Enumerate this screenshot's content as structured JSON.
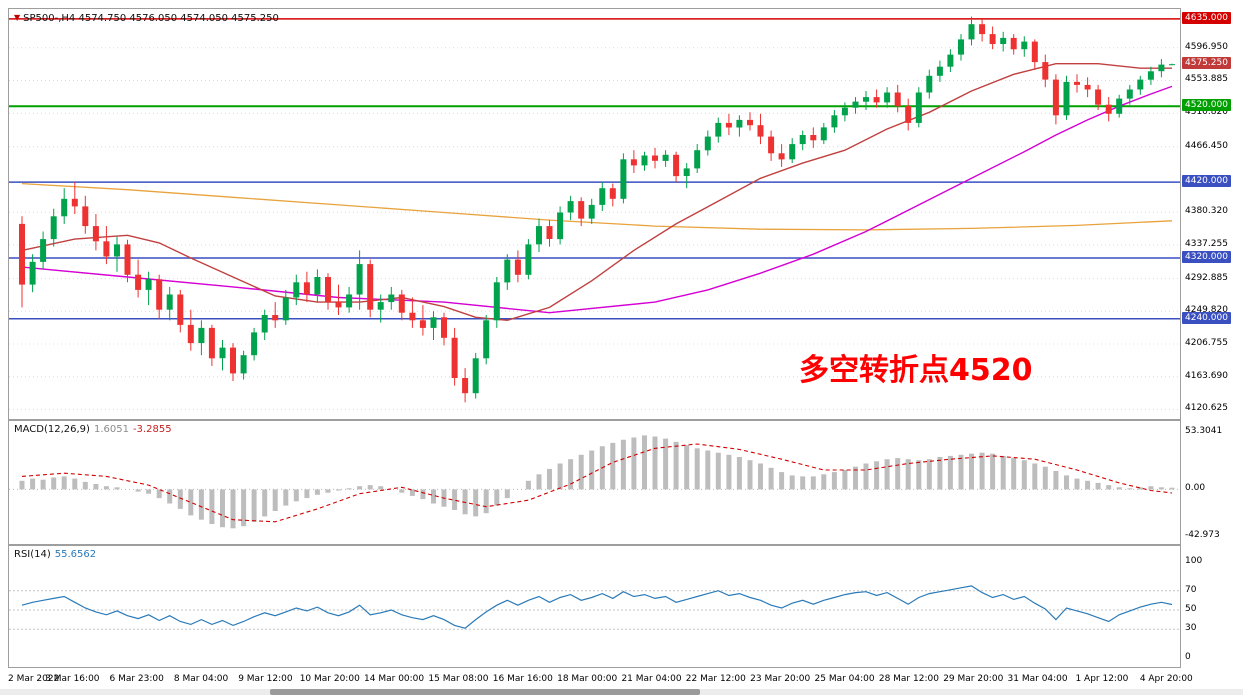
{
  "colors": {
    "candle_up": "#00A24C",
    "candle_down": "#EE3131",
    "ma_fast_red": "#C04040",
    "ma_mid_magenta": "#D400D4",
    "ma_slow_orange": "#E8A33D",
    "level_red": "#D40000",
    "level_green": "#00A000",
    "level_blue": "#3A4FC0",
    "macd_histogram": "#BDBDBD",
    "macd_signal": "#D00000",
    "rsi_line": "#2A7AB8",
    "grid": "#DCDCDC",
    "annotation": "#FF0000"
  },
  "time_axis": {
    "labels": [
      "2 Mar 2022",
      "3 Mar 16:00",
      "6 Mar 23:00",
      "8 Mar 04:00",
      "9 Mar 12:00",
      "10 Mar 20:00",
      "14 Mar 00:00",
      "15 Mar 08:00",
      "16 Mar 16:00",
      "18 Mar 00:00",
      "21 Mar 04:00",
      "22 Mar 12:00",
      "23 Mar 20:00",
      "25 Mar 04:00",
      "28 Mar 12:00",
      "29 Mar 20:00",
      "31 Mar 04:00",
      "1 Apr 12:00",
      "4 Apr 20:00"
    ]
  },
  "chart_data": [
    {
      "type": "candlestick",
      "symbol": "SP500-",
      "timeframe": "H4",
      "title_display": "SP500-,H4  4574.750 4576.050 4574.050 4575.250",
      "yrange": [
        4108,
        4648
      ],
      "yticks": [
        {
          "value": 4596.95,
          "label": "4596.950"
        },
        {
          "value": 4553.885,
          "label": "4553.885"
        },
        {
          "value": 4510.82,
          "label": "4510.820"
        },
        {
          "value": 4466.45,
          "label": "4466.450"
        },
        {
          "value": 4380.32,
          "label": "4380.320"
        },
        {
          "value": 4337.255,
          "label": "4337.255"
        },
        {
          "value": 4292.885,
          "label": "4292.885"
        },
        {
          "value": 4249.82,
          "label": "4249.820"
        },
        {
          "value": 4206.755,
          "label": "4206.755"
        },
        {
          "value": 4163.69,
          "label": "4163.690"
        },
        {
          "value": 4120.625,
          "label": "4120.625"
        }
      ],
      "hlines": [
        {
          "value": 4635.0,
          "label": "4635.000",
          "color_key": "level_red",
          "width": 1.5
        },
        {
          "value": 4520.0,
          "label": "4520.000",
          "color_key": "level_green",
          "width": 2
        },
        {
          "value": 4420.0,
          "label": "4420.000",
          "color_key": "level_blue",
          "width": 1.5
        },
        {
          "value": 4320.0,
          "label": "4320.000",
          "color_key": "level_blue",
          "width": 1.5
        },
        {
          "value": 4240.0,
          "label": "4240.000",
          "color_key": "level_blue",
          "width": 1.5
        }
      ],
      "price_badges": [
        {
          "value": 4635.0,
          "label": "4635.000",
          "bg": "#D40000"
        },
        {
          "value": 4575.25,
          "label": "4575.250",
          "bg": "#C03A3A"
        },
        {
          "value": 4520.0,
          "label": "4520.000",
          "bg": "#00A000"
        },
        {
          "value": 4420.0,
          "label": "4420.000",
          "bg": "#3A4FC0"
        },
        {
          "value": 4320.0,
          "label": "4320.000",
          "bg": "#3A4FC0"
        },
        {
          "value": 4240.0,
          "label": "4240.000",
          "bg": "#3A4FC0"
        }
      ],
      "candles": [
        [
          4365,
          4375,
          4255,
          4285
        ],
        [
          4285,
          4325,
          4275,
          4315
        ],
        [
          4315,
          4355,
          4305,
          4345
        ],
        [
          4345,
          4385,
          4335,
          4375
        ],
        [
          4375,
          4412,
          4365,
          4398
        ],
        [
          4398,
          4420,
          4378,
          4388
        ],
        [
          4388,
          4402,
          4352,
          4362
        ],
        [
          4362,
          4378,
          4330,
          4342
        ],
        [
          4342,
          4362,
          4312,
          4322
        ],
        [
          4322,
          4348,
          4302,
          4338
        ],
        [
          4338,
          4344,
          4288,
          4298
        ],
        [
          4298,
          4318,
          4268,
          4278
        ],
        [
          4278,
          4302,
          4258,
          4292
        ],
        [
          4292,
          4298,
          4240,
          4252
        ],
        [
          4252,
          4282,
          4238,
          4272
        ],
        [
          4272,
          4278,
          4222,
          4232
        ],
        [
          4232,
          4252,
          4198,
          4208
        ],
        [
          4208,
          4238,
          4192,
          4228
        ],
        [
          4228,
          4232,
          4178,
          4188
        ],
        [
          4188,
          4212,
          4172,
          4202
        ],
        [
          4202,
          4208,
          4158,
          4168
        ],
        [
          4168,
          4198,
          4160,
          4192
        ],
        [
          4192,
          4228,
          4185,
          4222
        ],
        [
          4222,
          4252,
          4212,
          4245
        ],
        [
          4245,
          4262,
          4228,
          4238
        ],
        [
          4238,
          4278,
          4232,
          4268
        ],
        [
          4268,
          4298,
          4258,
          4288
        ],
        [
          4288,
          4302,
          4262,
          4272
        ],
        [
          4272,
          4305,
          4262,
          4295
        ],
        [
          4295,
          4300,
          4252,
          4262
        ],
        [
          4262,
          4285,
          4245,
          4255
        ],
        [
          4255,
          4282,
          4248,
          4272
        ],
        [
          4272,
          4330,
          4252,
          4312
        ],
        [
          4312,
          4318,
          4242,
          4252
        ],
        [
          4252,
          4272,
          4235,
          4262
        ],
        [
          4262,
          4282,
          4252,
          4272
        ],
        [
          4272,
          4278,
          4238,
          4248
        ],
        [
          4248,
          4268,
          4228,
          4238
        ],
        [
          4238,
          4258,
          4218,
          4228
        ],
        [
          4228,
          4250,
          4212,
          4242
        ],
        [
          4242,
          4248,
          4205,
          4215
        ],
        [
          4215,
          4228,
          4152,
          4162
        ],
        [
          4162,
          4175,
          4130,
          4142
        ],
        [
          4142,
          4195,
          4135,
          4188
        ],
        [
          4188,
          4245,
          4180,
          4238
        ],
        [
          4238,
          4295,
          4228,
          4288
        ],
        [
          4288,
          4325,
          4278,
          4318
        ],
        [
          4318,
          4330,
          4288,
          4298
        ],
        [
          4298,
          4345,
          4292,
          4338
        ],
        [
          4338,
          4372,
          4328,
          4362
        ],
        [
          4362,
          4370,
          4335,
          4345
        ],
        [
          4345,
          4388,
          4338,
          4380
        ],
        [
          4380,
          4402,
          4370,
          4395
        ],
        [
          4395,
          4400,
          4362,
          4372
        ],
        [
          4372,
          4398,
          4365,
          4390
        ],
        [
          4390,
          4420,
          4382,
          4412
        ],
        [
          4412,
          4418,
          4388,
          4398
        ],
        [
          4398,
          4458,
          4392,
          4450
        ],
        [
          4450,
          4462,
          4432,
          4442
        ],
        [
          4442,
          4460,
          4435,
          4455
        ],
        [
          4455,
          4465,
          4438,
          4448
        ],
        [
          4448,
          4462,
          4440,
          4456
        ],
        [
          4456,
          4460,
          4420,
          4428
        ],
        [
          4428,
          4445,
          4412,
          4438
        ],
        [
          4438,
          4470,
          4432,
          4462
        ],
        [
          4462,
          4488,
          4455,
          4480
        ],
        [
          4480,
          4505,
          4472,
          4498
        ],
        [
          4498,
          4510,
          4482,
          4492
        ],
        [
          4492,
          4508,
          4480,
          4502
        ],
        [
          4502,
          4512,
          4488,
          4495
        ],
        [
          4495,
          4510,
          4470,
          4480
        ],
        [
          4480,
          4488,
          4448,
          4458
        ],
        [
          4458,
          4470,
          4440,
          4450
        ],
        [
          4450,
          4478,
          4445,
          4470
        ],
        [
          4470,
          4488,
          4462,
          4482
        ],
        [
          4482,
          4492,
          4465,
          4475
        ],
        [
          4475,
          4498,
          4470,
          4492
        ],
        [
          4492,
          4515,
          4485,
          4508
        ],
        [
          4508,
          4525,
          4500,
          4518
        ],
        [
          4518,
          4532,
          4510,
          4526
        ],
        [
          4526,
          4540,
          4515,
          4532
        ],
        [
          4532,
          4542,
          4518,
          4525
        ],
        [
          4525,
          4545,
          4518,
          4538
        ],
        [
          4538,
          4548,
          4512,
          4520
        ],
        [
          4520,
          4530,
          4488,
          4498
        ],
        [
          4498,
          4545,
          4492,
          4538
        ],
        [
          4538,
          4568,
          4530,
          4560
        ],
        [
          4560,
          4580,
          4552,
          4572
        ],
        [
          4572,
          4595,
          4565,
          4588
        ],
        [
          4588,
          4615,
          4580,
          4608
        ],
        [
          4608,
          4638,
          4600,
          4628
        ],
        [
          4628,
          4634,
          4605,
          4615
        ],
        [
          4615,
          4625,
          4595,
          4602
        ],
        [
          4602,
          4618,
          4592,
          4610
        ],
        [
          4610,
          4615,
          4588,
          4595
        ],
        [
          4595,
          4612,
          4585,
          4605
        ],
        [
          4605,
          4608,
          4568,
          4578
        ],
        [
          4578,
          4588,
          4545,
          4555
        ],
        [
          4555,
          4562,
          4496,
          4508
        ],
        [
          4508,
          4560,
          4502,
          4552
        ],
        [
          4552,
          4562,
          4538,
          4548
        ],
        [
          4548,
          4558,
          4532,
          4542
        ],
        [
          4542,
          4548,
          4515,
          4522
        ],
        [
          4522,
          4532,
          4500,
          4510
        ],
        [
          4510,
          4535,
          4505,
          4530
        ],
        [
          4530,
          4548,
          4522,
          4542
        ],
        [
          4542,
          4560,
          4535,
          4555
        ],
        [
          4555,
          4572,
          4548,
          4566
        ],
        [
          4566,
          4582,
          4558,
          4574.75
        ],
        [
          4574.75,
          4576.05,
          4574.05,
          4575.25
        ]
      ],
      "overlays": {
        "ma_fast_red": {
          "i": [
            0,
            5,
            10,
            13,
            16,
            20,
            24,
            28,
            32,
            36,
            40,
            43,
            46,
            50,
            54,
            58,
            62,
            66,
            70,
            74,
            78,
            82,
            86,
            90,
            94,
            98,
            102,
            106,
            109
          ],
          "v": [
            4330,
            4345,
            4350,
            4340,
            4320,
            4295,
            4270,
            4262,
            4262,
            4268,
            4256,
            4242,
            4238,
            4255,
            4290,
            4330,
            4365,
            4395,
            4425,
            4445,
            4462,
            4490,
            4512,
            4540,
            4562,
            4576,
            4576,
            4570,
            4570
          ]
        },
        "ma_mid_magenta": {
          "i": [
            0,
            10,
            20,
            30,
            40,
            50,
            60,
            65,
            70,
            75,
            80,
            85,
            90,
            95,
            98,
            101,
            104,
            107,
            109
          ],
          "v": [
            4308,
            4295,
            4282,
            4268,
            4262,
            4248,
            4262,
            4278,
            4300,
            4325,
            4355,
            4390,
            4425,
            4460,
            4482,
            4502,
            4520,
            4536,
            4546
          ]
        },
        "ma_slow_orange": {
          "i": [
            0,
            10,
            20,
            30,
            40,
            50,
            60,
            70,
            80,
            90,
            100,
            109
          ],
          "v": [
            4418,
            4410,
            4400,
            4390,
            4380,
            4370,
            4362,
            4358,
            4357,
            4359,
            4363,
            4369
          ]
        }
      },
      "annotations": [
        {
          "text": "多空转折点4520",
          "color": "#FF0000"
        }
      ]
    },
    {
      "type": "bar",
      "name": "MACD(12,26,9)",
      "value_main": "1.6051",
      "value_signal": "-3.2855",
      "yrange": [
        -50.5,
        63.3
      ],
      "yticks": [
        {
          "value": 53.3041,
          "label": "53.3041"
        },
        {
          "value": 0,
          "label": "0.00"
        },
        {
          "value": -42.973,
          "label": "-42.973"
        }
      ],
      "histogram": [
        8,
        10,
        9,
        11,
        12,
        10,
        7,
        5,
        3,
        2,
        0,
        -2,
        -4,
        -8,
        -13,
        -18,
        -24,
        -28,
        -32,
        -35,
        -36,
        -34,
        -30,
        -25,
        -20,
        -15,
        -11,
        -8,
        -5,
        -3,
        -1,
        1,
        3,
        4,
        3,
        0,
        -3,
        -6,
        -9,
        -13,
        -16,
        -19,
        -23,
        -25,
        -22,
        -15,
        -8,
        0,
        8,
        14,
        19,
        24,
        28,
        32,
        36,
        40,
        43,
        46,
        48,
        50,
        49,
        47,
        44,
        41,
        38,
        36,
        34,
        32,
        30,
        27,
        24,
        20,
        16,
        13,
        12,
        12,
        14,
        16,
        18,
        21,
        24,
        26,
        28,
        29,
        28,
        27,
        28,
        30,
        31,
        32,
        33,
        34,
        33,
        31,
        29,
        27,
        24,
        21,
        17,
        13,
        10,
        8,
        6,
        4,
        2,
        1,
        2,
        3,
        2,
        1.6
      ],
      "signal": {
        "i": [
          0,
          4,
          8,
          12,
          16,
          20,
          24,
          28,
          32,
          36,
          40,
          44,
          48,
          52,
          56,
          60,
          64,
          68,
          72,
          76,
          80,
          84,
          88,
          92,
          96,
          100,
          104,
          107,
          109
        ],
        "v": [
          12,
          15,
          12,
          4,
          -12,
          -28,
          -30,
          -18,
          -4,
          2,
          -8,
          -16,
          -10,
          5,
          25,
          38,
          42,
          37,
          28,
          18,
          18,
          24,
          28,
          31,
          28,
          18,
          6,
          -1,
          -3.3
        ]
      }
    },
    {
      "type": "line",
      "name": "RSI(14)",
      "value": "55.6562",
      "yrange": [
        -9.3,
        116.5
      ],
      "yticks": [
        {
          "value": 100,
          "label": "100"
        },
        {
          "value": 70,
          "label": "70"
        },
        {
          "value": 50,
          "label": "50"
        },
        {
          "value": 30,
          "label": "30"
        },
        {
          "value": 0,
          "label": "0"
        }
      ],
      "levels": [
        70,
        50,
        30
      ],
      "values": [
        55,
        58,
        60,
        62,
        64,
        58,
        52,
        48,
        45,
        49,
        44,
        41,
        45,
        39,
        44,
        38,
        35,
        40,
        35,
        39,
        34,
        38,
        43,
        47,
        44,
        48,
        52,
        49,
        53,
        47,
        44,
        48,
        55,
        45,
        47,
        50,
        45,
        42,
        40,
        44,
        40,
        34,
        31,
        40,
        48,
        55,
        60,
        55,
        60,
        64,
        58,
        63,
        66,
        60,
        63,
        67,
        62,
        69,
        64,
        66,
        62,
        64,
        58,
        61,
        64,
        67,
        70,
        65,
        67,
        63,
        60,
        55,
        52,
        57,
        60,
        56,
        60,
        63,
        66,
        68,
        69,
        65,
        68,
        62,
        56,
        63,
        67,
        69,
        71,
        73,
        75,
        68,
        63,
        66,
        61,
        64,
        57,
        51,
        40,
        52,
        49,
        46,
        42,
        38,
        45,
        49,
        53,
        56,
        58,
        55.66
      ]
    }
  ]
}
